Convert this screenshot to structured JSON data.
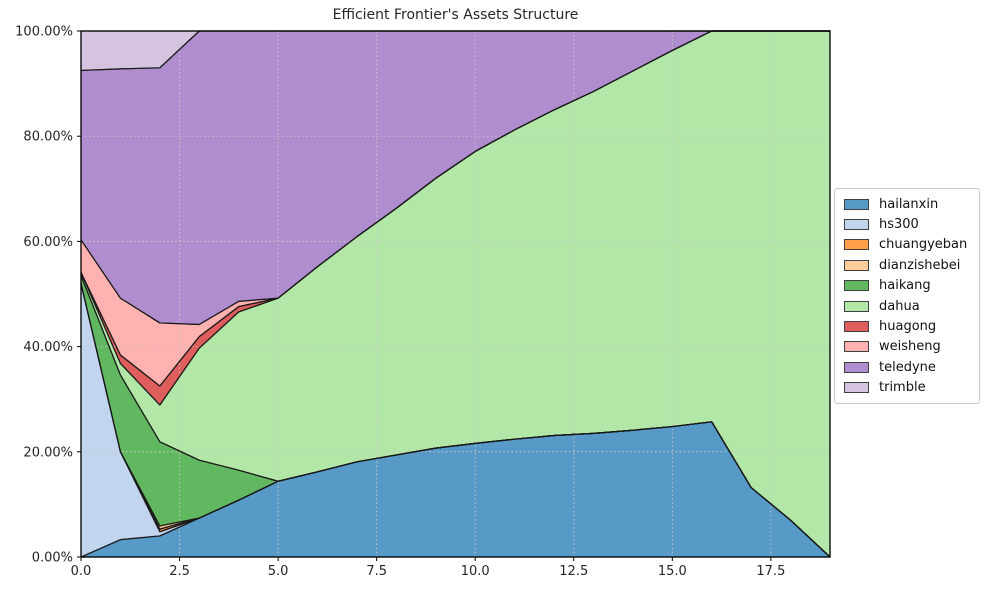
{
  "chart_data": {
    "type": "area",
    "stacked": true,
    "units": "%",
    "title": "Efficient Frontier's Assets Structure",
    "x": [
      0,
      1,
      2,
      3,
      4,
      5,
      6,
      7,
      8,
      9,
      10,
      11,
      12,
      13,
      14,
      15,
      16,
      17,
      18,
      19
    ],
    "xlim": [
      0,
      19
    ],
    "ylim": [
      0,
      100
    ],
    "x_ticks": [
      0,
      2.5,
      5,
      7.5,
      10,
      12.5,
      15,
      17.5
    ],
    "x_tick_labels": [
      "0.0",
      "2.5",
      "5.0",
      "7.5",
      "10.0",
      "12.5",
      "15.0",
      "17.5"
    ],
    "y_ticks": [
      0,
      20,
      40,
      60,
      80,
      100
    ],
    "y_tick_labels": [
      "0.00%",
      "20.00%",
      "40.00%",
      "60.00%",
      "80.00%",
      "100.00%"
    ],
    "grid": true,
    "legend_position": "center right, outside axes",
    "fill_opacity": 0.75,
    "edge_color": "#1a1a1a",
    "grid_color": "#c8c8c8",
    "background": "#ffffff",
    "series": [
      {
        "name": "hailanxin",
        "color": "#1f77b4",
        "values": [
          0,
          3.3,
          4.0,
          7.4,
          10.8,
          14.4,
          16.2,
          18.1,
          19.4,
          20.7,
          21.6,
          22.4,
          23.1,
          23.5,
          24.1,
          24.8,
          25.7,
          13.2,
          7.0,
          0
        ]
      },
      {
        "name": "hs300",
        "color": "#aec7e8",
        "values": [
          52.0,
          16.7,
          0.8,
          0,
          0,
          0,
          0,
          0,
          0,
          0,
          0,
          0,
          0,
          0,
          0,
          0,
          0,
          0,
          0,
          0
        ]
      },
      {
        "name": "chuangyeban",
        "color": "#ff7f0e",
        "values": [
          0,
          0,
          0.5,
          0,
          0,
          0,
          0,
          0,
          0,
          0,
          0,
          0,
          0,
          0,
          0,
          0,
          0,
          0,
          0,
          0
        ]
      },
      {
        "name": "dianzishebei",
        "color": "#ffbb78",
        "values": [
          0,
          0,
          0.6,
          0,
          0,
          0,
          0,
          0,
          0,
          0,
          0,
          0,
          0,
          0,
          0,
          0,
          0,
          0,
          0,
          0
        ]
      },
      {
        "name": "haikang",
        "color": "#2ca02c",
        "values": [
          1.5,
          14.6,
          16.0,
          11.0,
          5.7,
          0,
          0,
          0,
          0,
          0,
          0,
          0,
          0,
          0,
          0,
          0,
          0,
          0,
          0,
          0
        ]
      },
      {
        "name": "dahua",
        "color": "#98df8a",
        "values": [
          0.6,
          2.2,
          7.0,
          21.3,
          30.1,
          34.8,
          39.0,
          42.8,
          46.9,
          51.3,
          55.5,
          58.8,
          61.9,
          65.0,
          68.3,
          71.5,
          74.3,
          86.8,
          93.0,
          100
        ]
      },
      {
        "name": "huagong",
        "color": "#d62728",
        "values": [
          0,
          1.6,
          3.6,
          2.2,
          1.0,
          0,
          0,
          0,
          0,
          0,
          0,
          0,
          0,
          0,
          0,
          0,
          0,
          0,
          0,
          0
        ]
      },
      {
        "name": "weisheng",
        "color": "#ff9896",
        "values": [
          6.2,
          10.8,
          12.0,
          2.3,
          1.0,
          0,
          0,
          0,
          0,
          0,
          0,
          0,
          0,
          0,
          0,
          0,
          0,
          0,
          0,
          0
        ]
      },
      {
        "name": "teledyne",
        "color": "#9467bd",
        "values": [
          32.2,
          43.6,
          48.5,
          55.8,
          51.4,
          50.8,
          44.8,
          39.1,
          33.7,
          28.0,
          22.9,
          18.8,
          15.0,
          11.5,
          7.6,
          3.7,
          0,
          0,
          0,
          0
        ]
      },
      {
        "name": "trimble",
        "color": "#c5b0d5",
        "values": [
          7.5,
          7.2,
          7.0,
          0,
          0,
          0,
          0,
          0,
          0,
          0,
          0,
          0,
          0,
          0,
          0,
          0,
          0,
          0,
          0,
          0
        ]
      }
    ]
  }
}
